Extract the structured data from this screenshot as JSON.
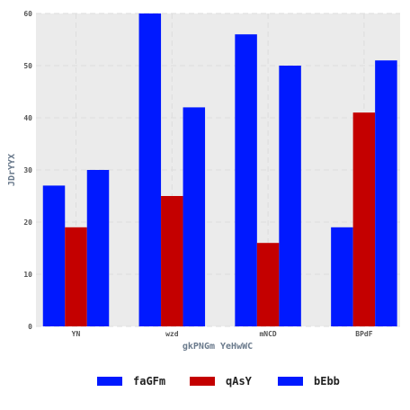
{
  "chart_data": {
    "type": "bar",
    "title": "",
    "xlabel": "gkPNGm YeHwWC",
    "ylabel": "JDrYYX",
    "categories": [
      "YN",
      "wzd",
      "mNCD",
      "BPdF"
    ],
    "ylim": [
      0,
      60
    ],
    "yticks": [
      0,
      10,
      20,
      30,
      40,
      50,
      60
    ],
    "grid": true,
    "legend_position": "bottom",
    "series": [
      {
        "name": "faGFm",
        "color": "#0019ff",
        "values": [
          27,
          60,
          56,
          19
        ]
      },
      {
        "name": "qAsY",
        "color": "#c40000",
        "values": [
          19,
          25,
          16,
          41
        ]
      },
      {
        "name": "bEbb",
        "color": "#0019ff",
        "values": [
          30,
          42,
          50,
          51
        ]
      }
    ]
  }
}
